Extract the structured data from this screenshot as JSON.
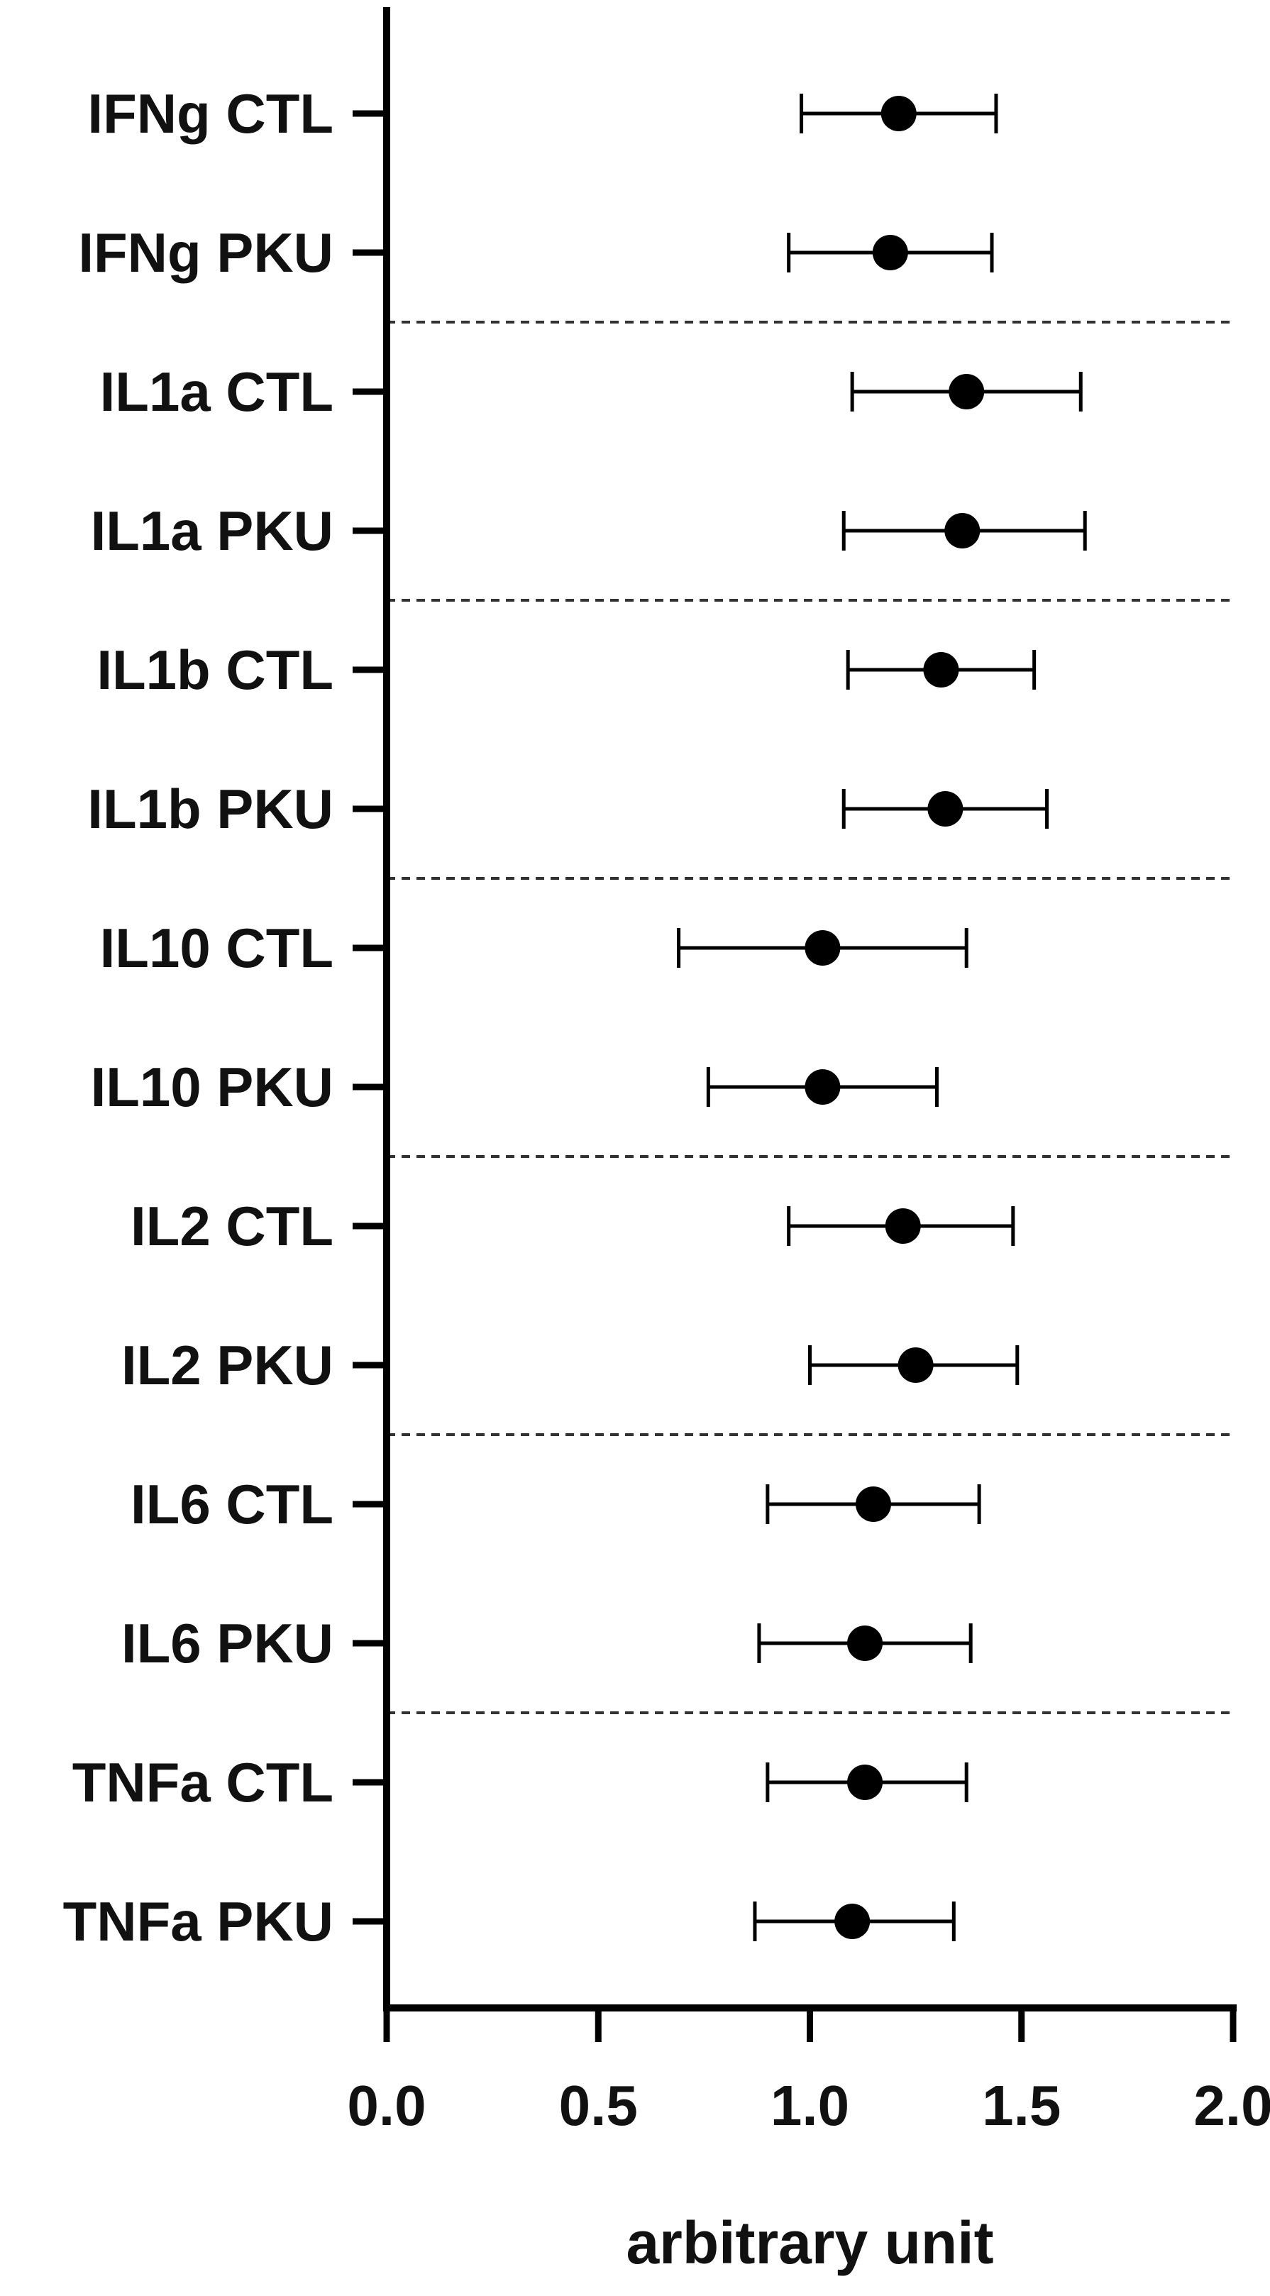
{
  "chart_data": {
    "type": "scatter",
    "orientation": "horizontal",
    "title": "",
    "xlabel": "arbitrary unit",
    "ylabel": "",
    "xlim": [
      0.0,
      2.0
    ],
    "x_ticks": [
      "0.0",
      "0.5",
      "1.0",
      "1.5",
      "2.0"
    ],
    "grid": false,
    "legend": "none",
    "categories": [
      "IFNg CTL",
      "IFNg PKU",
      "IL1a CTL",
      "IL1a PKU",
      "IL1b CTL",
      "IL1b PKU",
      "IL10 CTL",
      "IL10 PKU",
      "IL2 CTL",
      "IL2 PKU",
      "IL6 CTL",
      "IL6 PKU",
      "TNFa CTL",
      "TNFa PKU"
    ],
    "values": [
      1.21,
      1.19,
      1.37,
      1.36,
      1.31,
      1.32,
      1.03,
      1.03,
      1.22,
      1.25,
      1.15,
      1.13,
      1.13,
      1.1
    ],
    "error_low": [
      0.98,
      0.95,
      1.1,
      1.08,
      1.09,
      1.08,
      0.69,
      0.76,
      0.95,
      1.0,
      0.9,
      0.88,
      0.9,
      0.87
    ],
    "error_high": [
      1.44,
      1.43,
      1.64,
      1.65,
      1.53,
      1.56,
      1.37,
      1.3,
      1.48,
      1.49,
      1.4,
      1.38,
      1.37,
      1.34
    ],
    "group_separators_after": [
      1,
      3,
      5,
      7,
      9,
      11
    ],
    "colors": {
      "marker": "#000000",
      "axis": "#000000",
      "separator": "#333333"
    }
  }
}
